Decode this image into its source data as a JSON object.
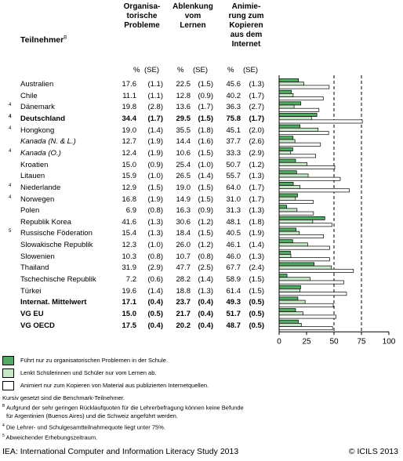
{
  "headers": {
    "teilnehmer": "Teilnehmer",
    "teilnehmer_note": "B",
    "col1": "Organisa-\ntorische\nProbleme",
    "col2": "Ablenkung\nvom\nLernen",
    "col3": "Animie-\nrung zum\nKopieren\naus dem\nInternet",
    "pct": "%",
    "se": "(SE)"
  },
  "chart_data": {
    "type": "bar",
    "orientation": "horizontal",
    "xlim": [
      0,
      100
    ],
    "x_ticks": [
      "0",
      "25",
      "50",
      "75",
      "100"
    ],
    "dashed_reference_lines": [
      50,
      75
    ],
    "series": [
      {
        "name": "Führt nur zu organisatorischen Problemen in der Schule.",
        "color": "#52a864"
      },
      {
        "name": "Lenkt Schülerinnen und Schüler nur vom Lernen ab.",
        "color": "#c8e6c8"
      },
      {
        "name": "Animiert nur zum Kopieren von Material aus publizierten Internetquellen.",
        "color": "#ffffff"
      }
    ],
    "rows": [
      {
        "note": "",
        "country": "Australien",
        "style": "normal",
        "v1": "17.6",
        "se1": "(1.1)",
        "v2": "22.5",
        "se2": "(1.5)",
        "v3": "45.6",
        "se3": "(1.3)",
        "values": [
          17.6,
          22.5,
          45.6
        ]
      },
      {
        "note": "",
        "country": "Chile",
        "style": "normal",
        "v1": "11.1",
        "se1": "(1.1)",
        "v2": "12.8",
        "se2": "(0.9)",
        "v3": "40.2",
        "se3": "(1.7)",
        "values": [
          11.1,
          12.8,
          40.2
        ]
      },
      {
        "note": "4",
        "country": "Dänemark",
        "style": "normal",
        "v1": "19.8",
        "se1": "(2.8)",
        "v2": "13.6",
        "se2": "(1.7)",
        "v3": "36.3",
        "se3": "(2.7)",
        "values": [
          19.8,
          13.6,
          36.3
        ]
      },
      {
        "note": "4",
        "country": "Deutschland",
        "style": "bold",
        "v1": "34.4",
        "se1": "(1.7)",
        "v2": "29.5",
        "se2": "(1.5)",
        "v3": "75.8",
        "se3": "(1.7)",
        "values": [
          34.4,
          29.5,
          75.8
        ]
      },
      {
        "note": "4",
        "country": "Hongkong",
        "style": "normal",
        "v1": "19.0",
        "se1": "(1.4)",
        "v2": "35.5",
        "se2": "(1.8)",
        "v3": "45.1",
        "se3": "(2.0)",
        "values": [
          19.0,
          35.5,
          45.1
        ]
      },
      {
        "note": "",
        "country": "Kanada (N. & L.)",
        "style": "italic",
        "v1": "12.7",
        "se1": "(1.9)",
        "v2": "14.4",
        "se2": "(1.6)",
        "v3": "37.7",
        "se3": "(2.6)",
        "values": [
          12.7,
          14.4,
          37.7
        ]
      },
      {
        "note": "4",
        "country": "Kanada (O.)",
        "style": "italic",
        "v1": "12.4",
        "se1": "(1.9)",
        "v2": "10.6",
        "se2": "(1.5)",
        "v3": "33.3",
        "se3": "(2.9)",
        "values": [
          12.4,
          10.6,
          33.3
        ]
      },
      {
        "note": "",
        "country": "Kroatien",
        "style": "normal",
        "v1": "15.0",
        "se1": "(0.9)",
        "v2": "25.4",
        "se2": "(1.0)",
        "v3": "50.7",
        "se3": "(1.2)",
        "values": [
          15.0,
          25.4,
          50.7
        ]
      },
      {
        "note": "",
        "country": "Litauen",
        "style": "normal",
        "v1": "15.9",
        "se1": "(1.0)",
        "v2": "26.5",
        "se2": "(1.4)",
        "v3": "55.7",
        "se3": "(1.3)",
        "values": [
          15.9,
          26.5,
          55.7
        ]
      },
      {
        "note": "4",
        "country": "Niederlande",
        "style": "normal",
        "v1": "12.9",
        "se1": "(1.5)",
        "v2": "19.0",
        "se2": "(1.5)",
        "v3": "64.0",
        "se3": "(1.7)",
        "values": [
          12.9,
          19.0,
          64.0
        ]
      },
      {
        "note": "4",
        "country": "Norwegen",
        "style": "normal",
        "v1": "16.8",
        "se1": "(1.9)",
        "v2": "14.9",
        "se2": "(1.5)",
        "v3": "31.0",
        "se3": "(1.7)",
        "values": [
          16.8,
          14.9,
          31.0
        ]
      },
      {
        "note": "",
        "country": "Polen",
        "style": "normal",
        "v1": "6.9",
        "se1": "(0.8)",
        "v2": "16.3",
        "se2": "(0.9)",
        "v3": "31.3",
        "se3": "(1.3)",
        "values": [
          6.9,
          16.3,
          31.3
        ]
      },
      {
        "note": "",
        "country": "Republik Korea",
        "style": "normal",
        "v1": "41.6",
        "se1": "(1.3)",
        "v2": "30.6",
        "se2": "(1.2)",
        "v3": "48.1",
        "se3": "(1.8)",
        "values": [
          41.6,
          30.6,
          48.1
        ]
      },
      {
        "note": "5",
        "country": "Russische Föderation",
        "style": "normal",
        "v1": "15.4",
        "se1": "(1.3)",
        "v2": "18.4",
        "se2": "(1.5)",
        "v3": "40.5",
        "se3": "(1.9)",
        "values": [
          15.4,
          18.4,
          40.5
        ]
      },
      {
        "note": "",
        "country": "Slowakische Republik",
        "style": "normal",
        "v1": "12.3",
        "se1": "(1.0)",
        "v2": "26.0",
        "se2": "(1.2)",
        "v3": "46.1",
        "se3": "(1.4)",
        "values": [
          12.3,
          26.0,
          46.1
        ]
      },
      {
        "note": "",
        "country": "Slowenien",
        "style": "normal",
        "v1": "10.3",
        "se1": "(0.8)",
        "v2": "10.7",
        "se2": "(0.8)",
        "v3": "46.0",
        "se3": "(1.3)",
        "values": [
          10.3,
          10.7,
          46.0
        ]
      },
      {
        "note": "",
        "country": "Thailand",
        "style": "normal",
        "v1": "31.9",
        "se1": "(2.9)",
        "v2": "47.7",
        "se2": "(2.5)",
        "v3": "67.7",
        "se3": "(2.4)",
        "values": [
          31.9,
          47.7,
          67.7
        ]
      },
      {
        "note": "",
        "country": "Tschechische Republik",
        "style": "normal",
        "v1": "7.2",
        "se1": "(0.6)",
        "v2": "28.2",
        "se2": "(1.4)",
        "v3": "58.9",
        "se3": "(1.5)",
        "values": [
          7.2,
          28.2,
          58.9
        ]
      },
      {
        "note": "",
        "country": "Türkei",
        "style": "normal",
        "v1": "19.6",
        "se1": "(1.4)",
        "v2": "18.8",
        "se2": "(1.3)",
        "v3": "61.4",
        "se3": "(1.5)",
        "values": [
          19.6,
          18.8,
          61.4
        ]
      },
      {
        "note": "",
        "country": "Internat. Mittelwert",
        "style": "bold",
        "v1": "17.1",
        "se1": "(0.4)",
        "v2": "23.7",
        "se2": "(0.4)",
        "v3": "49.3",
        "se3": "(0.5)",
        "values": [
          17.1,
          23.7,
          49.3
        ]
      },
      {
        "note": "",
        "country": "VG EU",
        "style": "bold",
        "v1": "15.0",
        "se1": "(0.5)",
        "v2": "21.7",
        "se2": "(0.4)",
        "v3": "51.7",
        "se3": "(0.5)",
        "values": [
          15.0,
          21.7,
          51.7
        ]
      },
      {
        "note": "",
        "country": "VG OECD",
        "style": "bold",
        "v1": "17.5",
        "se1": "(0.4)",
        "v2": "20.2",
        "se2": "(0.4)",
        "v3": "48.7",
        "se3": "(0.5)",
        "values": [
          17.5,
          20.2,
          48.7
        ]
      }
    ]
  },
  "legend": [
    {
      "text": "Führt nur zu organisatorischen Problemen in der Schule.",
      "color": "#52a864"
    },
    {
      "text": "Lenkt Schülerinnen und Schüler nur vom Lernen ab.",
      "color": "#c8e6c8"
    },
    {
      "text": "Animiert nur zum Kopieren von Material aus publizierten Internetquellen.",
      "color": "#ffffff"
    }
  ],
  "footnotes": {
    "italic_note": "Kursiv gesetzt sind die Benchmark-Teilnehmer.",
    "b_mark": "B",
    "b_text_1": "Aufgrund der sehr geringen Rücklaufquoten für die Lehrerbefragung können keine Befunde",
    "b_text_2": "für Argentinien (Buenos Aires) und die Schweiz angeführt werden.",
    "n4_mark": "4",
    "n4_text": "Die Lehrer- und Schulgesamtteilnahmequote liegt unter 75%.",
    "n5_mark": "5",
    "n5_text": "Abweichender Erhebungszeitraum."
  },
  "source": "IEA: International Computer and Information Literacy Study 2013",
  "copyright": "© ICILS 2013"
}
